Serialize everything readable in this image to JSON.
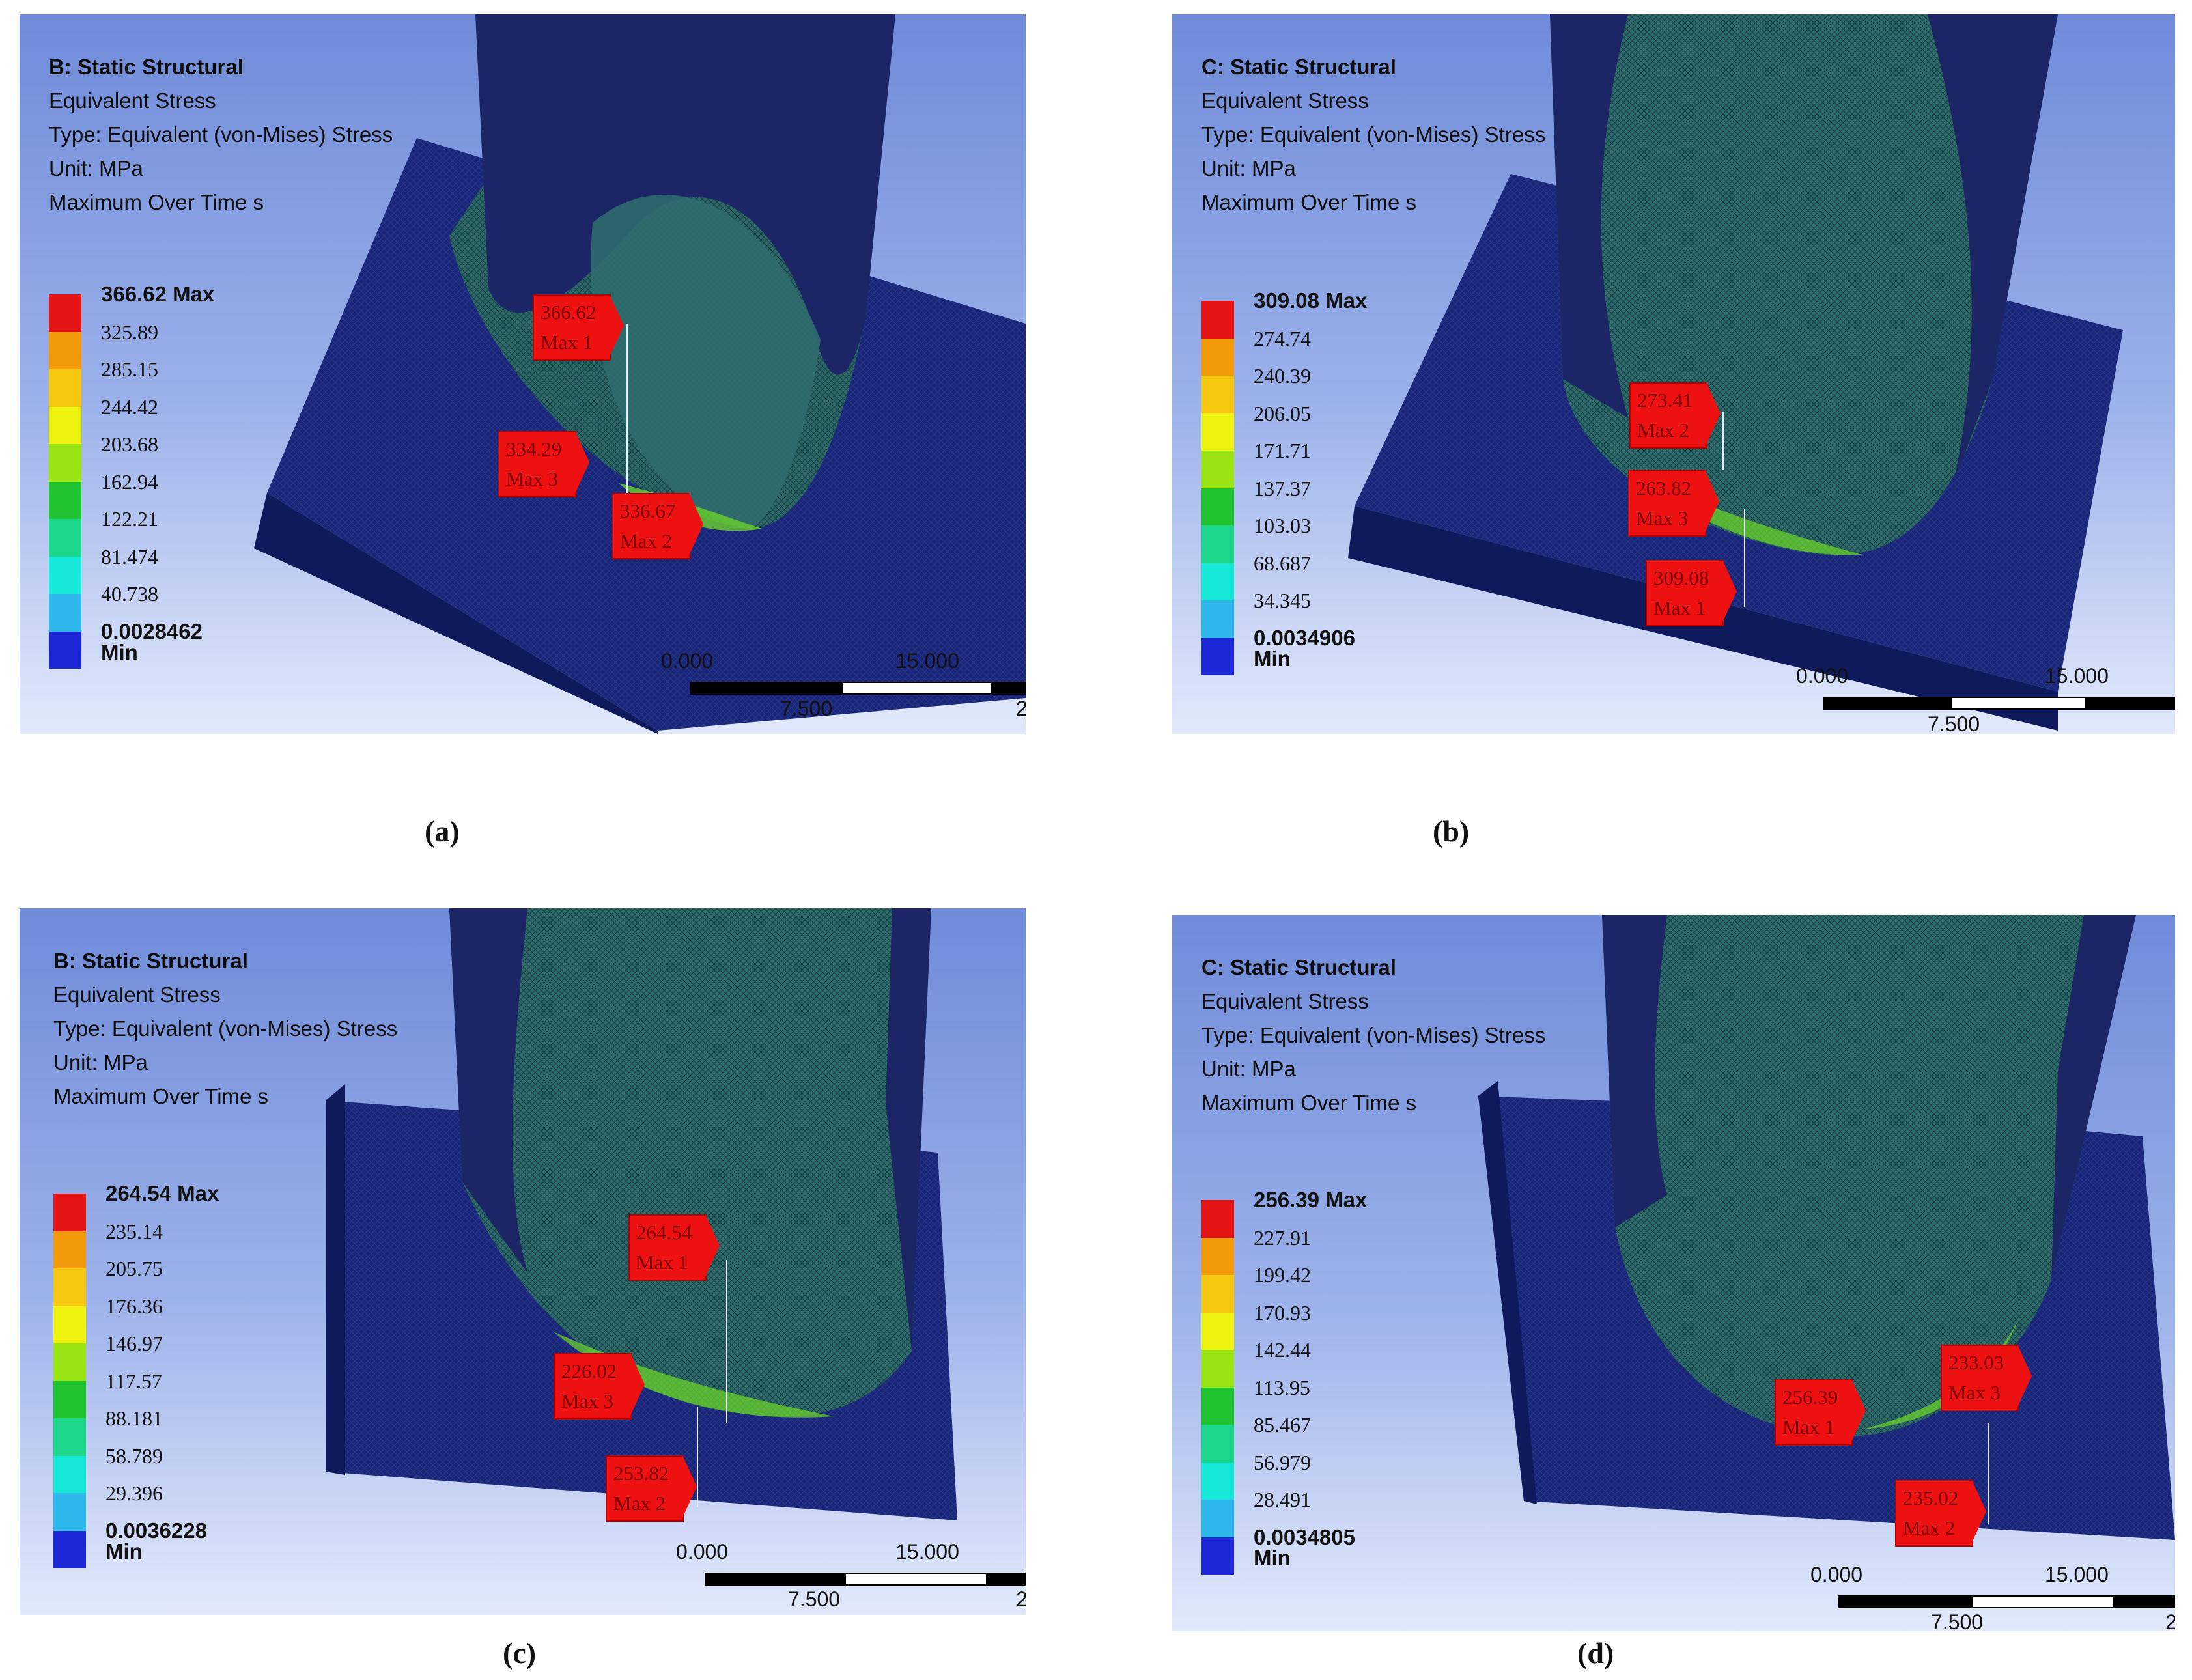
{
  "panels": [
    {
      "id": "a",
      "legend": {
        "title": "B: Static Structural",
        "lines": [
          "Equivalent Stress",
          "Type: Equivalent (von-Mises) Stress",
          "Unit: MPa",
          "Maximum Over Time s"
        ]
      },
      "scale": [
        "366.62 Max",
        "325.89",
        "285.15",
        "244.42",
        "203.68",
        "162.94",
        "122.21",
        "81.474",
        "40.738",
        "0.0028462 Min"
      ],
      "probes": [
        {
          "value": "366.62",
          "label": "Max 1"
        },
        {
          "value": "334.29",
          "label": "Max 3"
        },
        {
          "value": "336.67",
          "label": "Max 2"
        }
      ],
      "scalebar": {
        "start": "0.000",
        "end": "15.000",
        "mid": "7.500",
        "cut": "2"
      },
      "caption": "(a)"
    },
    {
      "id": "b",
      "legend": {
        "title": "C: Static Structural",
        "lines": [
          "Equivalent Stress",
          "Type: Equivalent (von-Mises) Stress",
          "Unit: MPa",
          "Maximum Over Time s"
        ]
      },
      "scale": [
        "309.08 Max",
        "274.74",
        "240.39",
        "206.05",
        "171.71",
        "137.37",
        "103.03",
        "68.687",
        "34.345",
        "0.0034906 Min"
      ],
      "probes": [
        {
          "value": "273.41",
          "label": "Max 2"
        },
        {
          "value": "263.82",
          "label": "Max 3"
        },
        {
          "value": "309.08",
          "label": "Max 1"
        }
      ],
      "scalebar": {
        "start": "0.000",
        "end": "15.000",
        "mid": "7.500",
        "cut": ""
      },
      "caption": "(b)"
    },
    {
      "id": "c",
      "legend": {
        "title": "B: Static Structural",
        "lines": [
          "Equivalent Stress",
          "Type: Equivalent (von-Mises) Stress",
          "Unit: MPa",
          "Maximum Over Time s"
        ]
      },
      "scale": [
        "264.54 Max",
        "235.14",
        "205.75",
        "176.36",
        "146.97",
        "117.57",
        "88.181",
        "58.789",
        "29.396",
        "0.0036228 Min"
      ],
      "probes": [
        {
          "value": "264.54",
          "label": "Max 1"
        },
        {
          "value": "226.02",
          "label": "Max 3"
        },
        {
          "value": "253.82",
          "label": "Max 2"
        }
      ],
      "scalebar": {
        "start": "0.000",
        "end": "15.000",
        "mid": "7.500",
        "cut": "2"
      },
      "caption": "(c)"
    },
    {
      "id": "d",
      "legend": {
        "title": "C: Static Structural",
        "lines": [
          "Equivalent Stress",
          "Type: Equivalent (von-Mises) Stress",
          "Unit: MPa",
          "Maximum Over Time s"
        ]
      },
      "scale": [
        "256.39 Max",
        "227.91",
        "199.42",
        "170.93",
        "142.44",
        "113.95",
        "85.467",
        "56.979",
        "28.491",
        "0.0034805 Min"
      ],
      "probes": [
        {
          "value": "256.39",
          "label": "Max 1"
        },
        {
          "value": "233.03",
          "label": "Max 3"
        },
        {
          "value": "235.02",
          "label": "Max 2"
        }
      ],
      "scalebar": {
        "start": "0.000",
        "end": "15.000",
        "mid": "7.500",
        "cut": "2"
      },
      "caption": "(d)"
    }
  ],
  "colors": {
    "contour": [
      "#e61515",
      "#f39a0b",
      "#f5c70f",
      "#eef20f",
      "#9be414",
      "#1fc22f",
      "#1bd68b",
      "#15e8d6",
      "#2eb7ea",
      "#1c27d8"
    ],
    "mesh_dark": "#15217a",
    "mesh_light": "#1e5a7c",
    "probe": "#ee1111"
  }
}
